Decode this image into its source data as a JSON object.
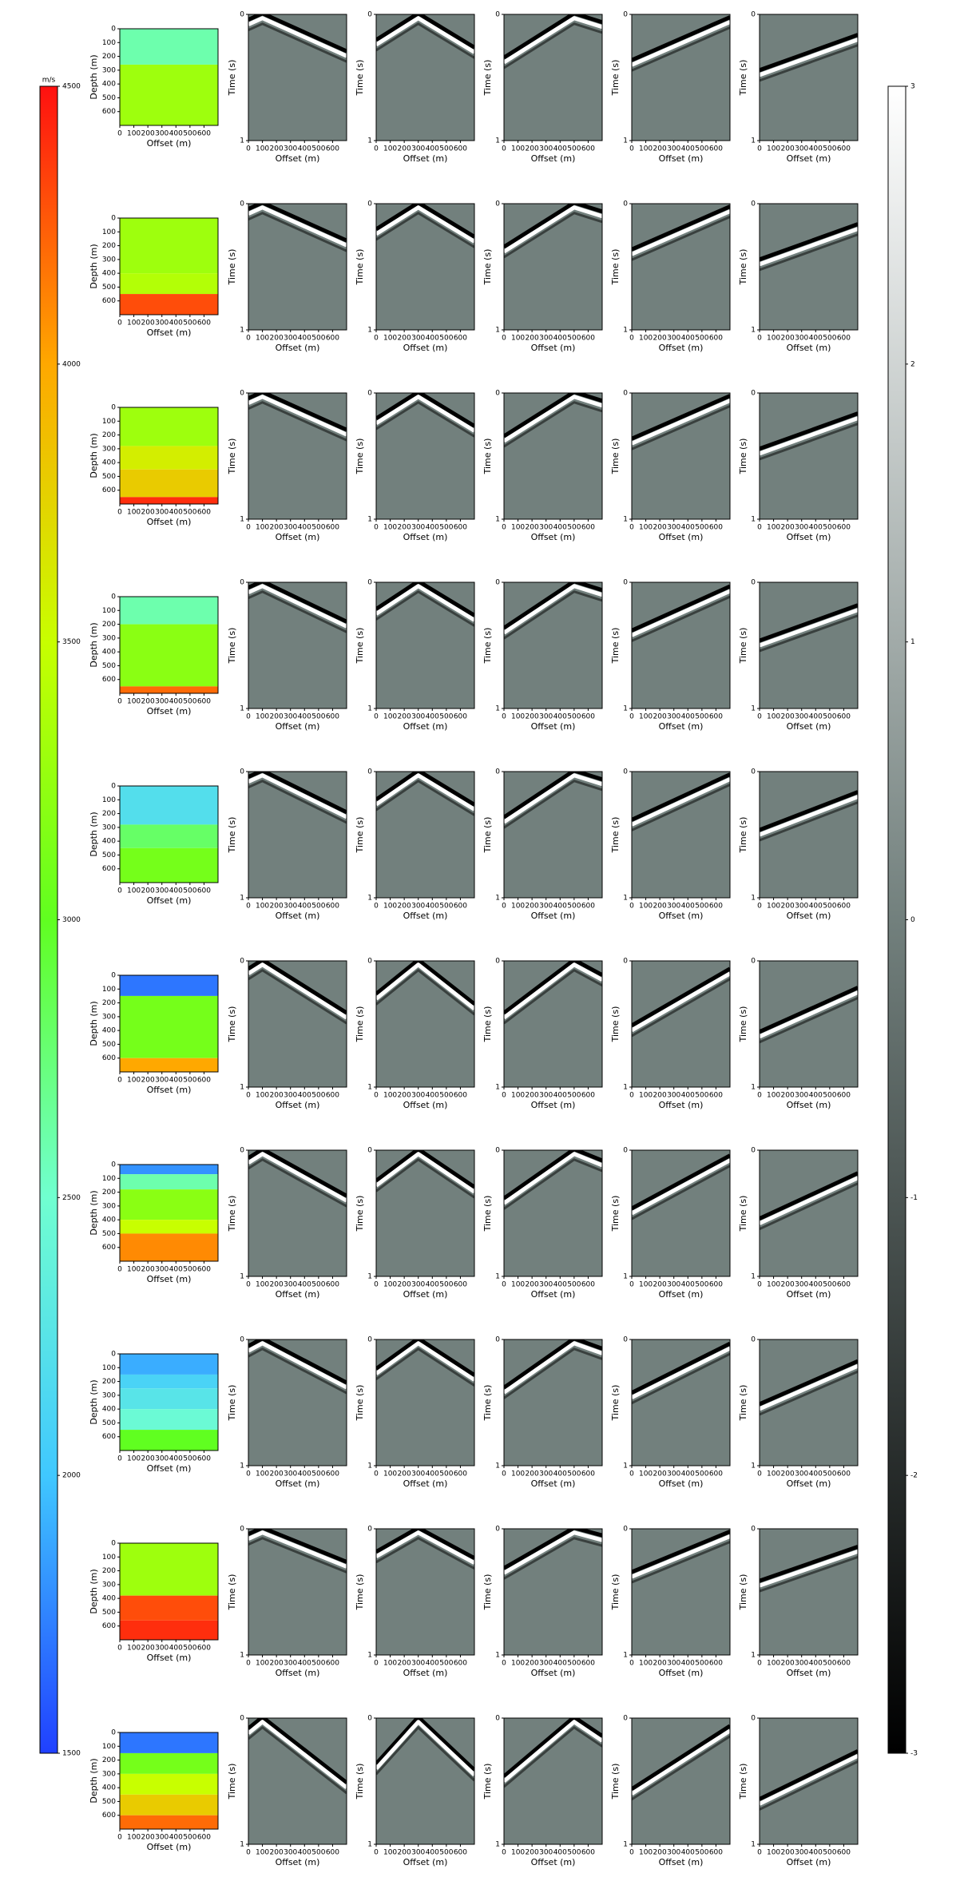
{
  "chart_data": {
    "type": "model-gather-grid",
    "model_axes": {
      "xlabel": "Offset (m)",
      "ylabel": "Depth (m)",
      "xlim": [
        0,
        700
      ],
      "ylim": [
        0,
        700
      ],
      "xticks": [
        0,
        100,
        200,
        300,
        400,
        500,
        600
      ],
      "yticks": [
        0,
        100,
        200,
        300,
        400,
        500,
        600
      ],
      "y_inverted": true
    },
    "gather_axes": {
      "xlabel": "Offset (m)",
      "ylabel": "Time (s)",
      "xlim": [
        0,
        700
      ],
      "ylim": [
        0,
        1
      ],
      "xticks": [
        0,
        100,
        200,
        300,
        400,
        500,
        600
      ],
      "yticks": [
        0,
        1
      ],
      "y_inverted": true
    },
    "velocity_colorbar": {
      "label": "m/s",
      "lim": [
        1500,
        4500
      ],
      "ticks": [
        1500,
        2000,
        2500,
        3000,
        3500,
        4000,
        4500
      ],
      "colors": [
        "#2040ff",
        "#40c8ff",
        "#70ffd0",
        "#60ff20",
        "#c8ff00",
        "#ffa800",
        "#ff1010"
      ]
    },
    "amplitude_colorbar": {
      "lim": [
        -3,
        3
      ],
      "ticks": [
        -3,
        -2,
        -1,
        0,
        1,
        2,
        3
      ],
      "colors": [
        "#000000",
        "#72807d",
        "#ffffff"
      ]
    },
    "rows": [
      {
        "layers": [
          {
            "top": 0,
            "bottom": 260,
            "velocity": 2600
          },
          {
            "top": 260,
            "bottom": 700,
            "velocity": 3300
          }
        ],
        "gathers": [
          {
            "x": [
              0,
              100,
              700
            ],
            "t": [
              0.08,
              0.03,
              0.33
            ]
          },
          {
            "x": [
              0,
              300,
              700
            ],
            "t": [
              0.24,
              0.03,
              0.3
            ]
          },
          {
            "x": [
              0,
              500,
              700
            ],
            "t": [
              0.38,
              0.03,
              0.1
            ]
          },
          {
            "x": [
              0,
              700
            ],
            "t": [
              0.4,
              0.06
            ]
          },
          {
            "x": [
              0,
              700
            ],
            "t": [
              0.48,
              0.2
            ]
          }
        ]
      },
      {
        "layers": [
          {
            "top": 0,
            "bottom": 400,
            "velocity": 3300
          },
          {
            "top": 400,
            "bottom": 550,
            "velocity": 3400
          },
          {
            "top": 550,
            "bottom": 700,
            "velocity": 4300
          }
        ],
        "gathers": [
          {
            "x": [
              0,
              100,
              700
            ],
            "t": [
              0.08,
              0.03,
              0.33
            ]
          },
          {
            "x": [
              0,
              300,
              700
            ],
            "t": [
              0.24,
              0.03,
              0.3
            ]
          },
          {
            "x": [
              0,
              500,
              700
            ],
            "t": [
              0.38,
              0.03,
              0.1
            ]
          },
          {
            "x": [
              0,
              700
            ],
            "t": [
              0.4,
              0.06
            ]
          },
          {
            "x": [
              0,
              700
            ],
            "t": [
              0.48,
              0.2
            ]
          }
        ]
      },
      {
        "layers": [
          {
            "top": 0,
            "bottom": 280,
            "velocity": 3300
          },
          {
            "top": 280,
            "bottom": 450,
            "velocity": 3600
          },
          {
            "top": 450,
            "bottom": 650,
            "velocity": 3800
          },
          {
            "top": 650,
            "bottom": 700,
            "velocity": 4400
          }
        ],
        "gathers": [
          {
            "x": [
              0,
              100,
              700
            ],
            "t": [
              0.08,
              0.03,
              0.33
            ]
          },
          {
            "x": [
              0,
              300,
              700
            ],
            "t": [
              0.24,
              0.03,
              0.3
            ]
          },
          {
            "x": [
              0,
              500,
              700
            ],
            "t": [
              0.38,
              0.03,
              0.1
            ]
          },
          {
            "x": [
              0,
              700
            ],
            "t": [
              0.4,
              0.06
            ]
          },
          {
            "x": [
              0,
              700
            ],
            "t": [
              0.48,
              0.2
            ]
          }
        ]
      },
      {
        "layers": [
          {
            "top": 0,
            "bottom": 200,
            "velocity": 2600
          },
          {
            "top": 200,
            "bottom": 650,
            "velocity": 3200
          },
          {
            "top": 650,
            "bottom": 700,
            "velocity": 4200
          }
        ],
        "gathers": [
          {
            "x": [
              0,
              100,
              700
            ],
            "t": [
              0.08,
              0.03,
              0.35
            ]
          },
          {
            "x": [
              0,
              300,
              700
            ],
            "t": [
              0.25,
              0.03,
              0.3
            ]
          },
          {
            "x": [
              0,
              500,
              700
            ],
            "t": [
              0.4,
              0.03,
              0.1
            ]
          },
          {
            "x": [
              0,
              700
            ],
            "t": [
              0.42,
              0.07
            ]
          },
          {
            "x": [
              0,
              700
            ],
            "t": [
              0.5,
              0.22
            ]
          }
        ]
      },
      {
        "layers": [
          {
            "top": 0,
            "bottom": 280,
            "velocity": 2200
          },
          {
            "top": 280,
            "bottom": 450,
            "velocity": 2800
          },
          {
            "top": 450,
            "bottom": 700,
            "velocity": 3100
          }
        ],
        "gathers": [
          {
            "x": [
              0,
              100,
              700
            ],
            "t": [
              0.08,
              0.03,
              0.36
            ]
          },
          {
            "x": [
              0,
              300,
              700
            ],
            "t": [
              0.26,
              0.03,
              0.3
            ]
          },
          {
            "x": [
              0,
              500,
              700
            ],
            "t": [
              0.4,
              0.03,
              0.1
            ]
          },
          {
            "x": [
              0,
              700
            ],
            "t": [
              0.42,
              0.06
            ]
          },
          {
            "x": [
              0,
              700
            ],
            "t": [
              0.5,
              0.2
            ]
          }
        ]
      },
      {
        "layers": [
          {
            "top": 0,
            "bottom": 150,
            "velocity": 1700
          },
          {
            "top": 150,
            "bottom": 600,
            "velocity": 3100
          },
          {
            "top": 600,
            "bottom": 700,
            "velocity": 4000
          }
        ],
        "gathers": [
          {
            "x": [
              0,
              100,
              700
            ],
            "t": [
              0.1,
              0.03,
              0.45
            ]
          },
          {
            "x": [
              0,
              300,
              700
            ],
            "t": [
              0.3,
              0.03,
              0.38
            ]
          },
          {
            "x": [
              0,
              500,
              700
            ],
            "t": [
              0.45,
              0.03,
              0.15
            ]
          },
          {
            "x": [
              0,
              700
            ],
            "t": [
              0.55,
              0.1
            ]
          },
          {
            "x": [
              0,
              700
            ],
            "t": [
              0.6,
              0.25
            ]
          }
        ]
      },
      {
        "layers": [
          {
            "top": 0,
            "bottom": 70,
            "velocity": 1800
          },
          {
            "top": 70,
            "bottom": 180,
            "velocity": 2600
          },
          {
            "top": 180,
            "bottom": 400,
            "velocity": 3200
          },
          {
            "top": 400,
            "bottom": 500,
            "velocity": 3500
          },
          {
            "top": 500,
            "bottom": 700,
            "velocity": 4100
          }
        ],
        "gathers": [
          {
            "x": [
              0,
              100,
              700
            ],
            "t": [
              0.1,
              0.03,
              0.4
            ]
          },
          {
            "x": [
              0,
              300,
              700
            ],
            "t": [
              0.28,
              0.03,
              0.33
            ]
          },
          {
            "x": [
              0,
              500,
              700
            ],
            "t": [
              0.42,
              0.03,
              0.12
            ]
          },
          {
            "x": [
              0,
              700
            ],
            "t": [
              0.5,
              0.08
            ]
          },
          {
            "x": [
              0,
              700
            ],
            "t": [
              0.58,
              0.22
            ]
          }
        ]
      },
      {
        "layers": [
          {
            "top": 0,
            "bottom": 150,
            "velocity": 1900
          },
          {
            "top": 150,
            "bottom": 250,
            "velocity": 2100
          },
          {
            "top": 250,
            "bottom": 400,
            "velocity": 2250
          },
          {
            "top": 400,
            "bottom": 550,
            "velocity": 2450
          },
          {
            "top": 550,
            "bottom": 700,
            "velocity": 3000
          }
        ],
        "gathers": [
          {
            "x": [
              0,
              100,
              700
            ],
            "t": [
              0.09,
              0.03,
              0.38
            ]
          },
          {
            "x": [
              0,
              300,
              700
            ],
            "t": [
              0.27,
              0.03,
              0.32
            ]
          },
          {
            "x": [
              0,
              500,
              700
            ],
            "t": [
              0.42,
              0.03,
              0.11
            ]
          },
          {
            "x": [
              0,
              700
            ],
            "t": [
              0.46,
              0.07
            ]
          },
          {
            "x": [
              0,
              700
            ],
            "t": [
              0.55,
              0.21
            ]
          }
        ]
      },
      {
        "layers": [
          {
            "top": 0,
            "bottom": 380,
            "velocity": 3300
          },
          {
            "top": 380,
            "bottom": 560,
            "velocity": 4300
          },
          {
            "top": 560,
            "bottom": 700,
            "velocity": 4400
          }
        ],
        "gathers": [
          {
            "x": [
              0,
              100,
              700
            ],
            "t": [
              0.08,
              0.03,
              0.3
            ]
          },
          {
            "x": [
              0,
              300,
              700
            ],
            "t": [
              0.22,
              0.03,
              0.27
            ]
          },
          {
            "x": [
              0,
              500,
              700
            ],
            "t": [
              0.35,
              0.03,
              0.09
            ]
          },
          {
            "x": [
              0,
              700
            ],
            "t": [
              0.38,
              0.06
            ]
          },
          {
            "x": [
              0,
              700
            ],
            "t": [
              0.45,
              0.18
            ]
          }
        ]
      },
      {
        "layers": [
          {
            "top": 0,
            "bottom": 150,
            "velocity": 1700
          },
          {
            "top": 150,
            "bottom": 300,
            "velocity": 3100
          },
          {
            "top": 300,
            "bottom": 450,
            "velocity": 3500
          },
          {
            "top": 450,
            "bottom": 600,
            "velocity": 3800
          },
          {
            "top": 600,
            "bottom": 700,
            "velocity": 4200
          }
        ],
        "gathers": [
          {
            "x": [
              0,
              100,
              700
            ],
            "t": [
              0.12,
              0.03,
              0.55
            ]
          },
          {
            "x": [
              0,
              300,
              700
            ],
            "t": [
              0.4,
              0.03,
              0.45
            ]
          },
          {
            "x": [
              0,
              500,
              700
            ],
            "t": [
              0.5,
              0.03,
              0.18
            ]
          },
          {
            "x": [
              0,
              700
            ],
            "t": [
              0.6,
              0.1
            ]
          },
          {
            "x": [
              0,
              700
            ],
            "t": [
              0.68,
              0.3
            ]
          }
        ]
      }
    ]
  }
}
